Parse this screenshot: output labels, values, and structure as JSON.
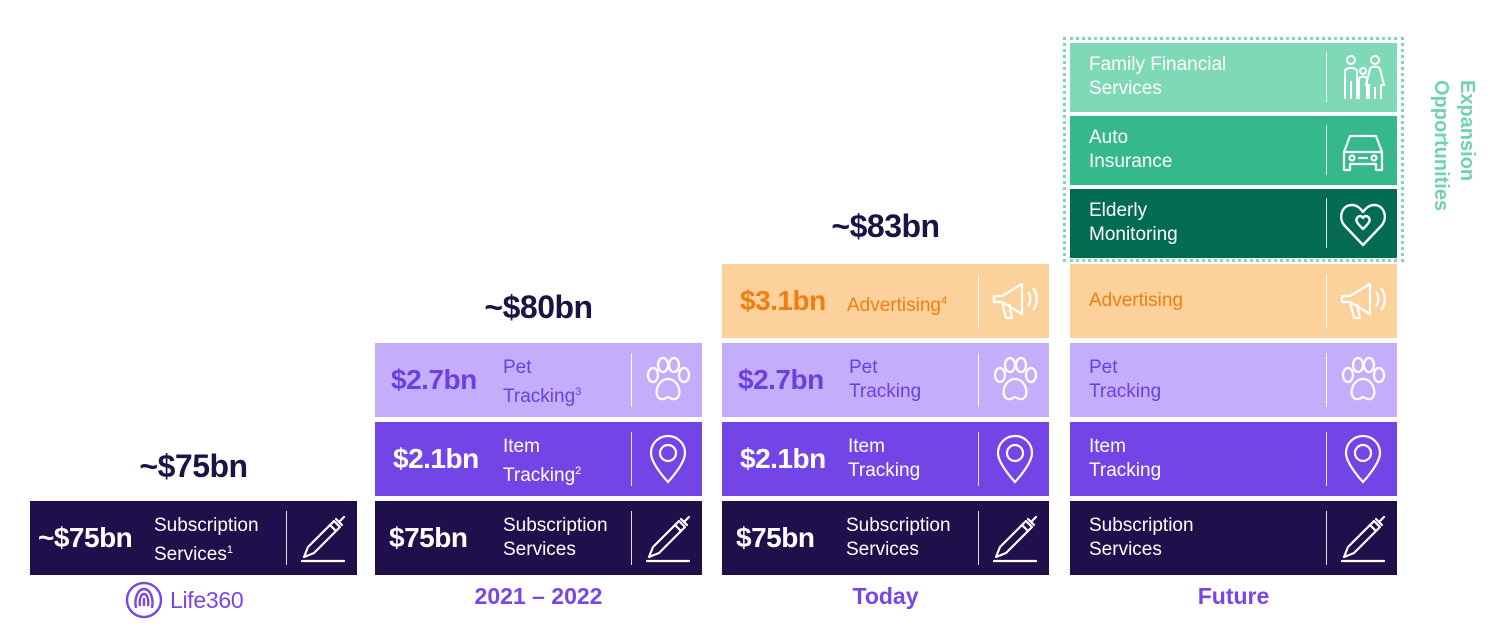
{
  "columns": {
    "life360": {
      "total": "~$75bn",
      "logo_text": "Life360",
      "subscription": {
        "amount": "~$75bn",
        "label": "Subscription\nServices",
        "sup": "1"
      }
    },
    "y2021": {
      "total": "~$80bn",
      "label": "2021 – 2022",
      "pet": {
        "amount": "$2.7bn",
        "label": "Pet\nTracking",
        "sup": "3"
      },
      "item": {
        "amount": "$2.1bn",
        "label": "Item\nTracking",
        "sup": "2"
      },
      "subscription": {
        "amount": "$75bn",
        "label": "Subscription\nServices"
      }
    },
    "today": {
      "total": "~$83bn",
      "label": "Today",
      "advertising": {
        "amount": "$3.1bn",
        "label": "Advertising",
        "sup": "4"
      },
      "pet": {
        "amount": "$2.7bn",
        "label": "Pet\nTracking"
      },
      "item": {
        "amount": "$2.1bn",
        "label": "Item\nTracking"
      },
      "subscription": {
        "amount": "$75bn",
        "label": "Subscription\nServices"
      }
    },
    "future": {
      "label": "Future",
      "family": {
        "label": "Family Financial\nServices"
      },
      "auto": {
        "label": "Auto\nInsurance"
      },
      "elderly": {
        "label": "Elderly\nMonitoring"
      },
      "advertising": {
        "label": "Advertising"
      },
      "pet": {
        "label": "Pet\nTracking"
      },
      "item": {
        "label": "Item\nTracking"
      },
      "subscription": {
        "label": "Subscription\nServices"
      }
    }
  },
  "expansion_label": "Expansion\nOpportunities",
  "icons": [
    "pen-icon",
    "location-pin-icon",
    "paw-icon",
    "megaphone-icon",
    "car-icon",
    "heart-icon",
    "family-icon"
  ],
  "colors": {
    "subscription": "#1f0f4a",
    "item": "#7345e6",
    "pet": "#c4aefb",
    "advertising": "#fdd19c",
    "family": "#7fd9b6",
    "auto": "#35b98a",
    "elderly": "#026b51",
    "accent": "#7a45e8"
  }
}
